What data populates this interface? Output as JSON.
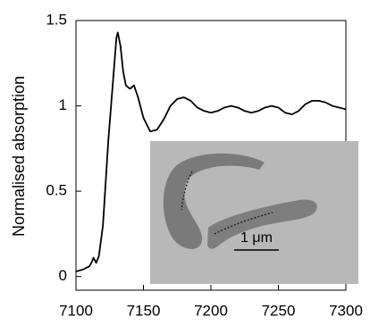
{
  "chart_data": {
    "type": "line",
    "ylabel": "Normalised absorption",
    "annotation": "1 μm",
    "color": "#000000",
    "x": [
      7100,
      7105,
      7110,
      7112,
      7113,
      7115,
      7117,
      7120,
      7122,
      7124,
      7126,
      7128,
      7130,
      7131,
      7133,
      7135,
      7137,
      7140,
      7143,
      7146,
      7150,
      7155,
      7160,
      7165,
      7170,
      7175,
      7180,
      7185,
      7190,
      7195,
      7200,
      7205,
      7210,
      7215,
      7220,
      7225,
      7230,
      7235,
      7240,
      7245,
      7250,
      7255,
      7260,
      7265,
      7270,
      7275,
      7280,
      7285,
      7290,
      7295,
      7300
    ],
    "values": [
      0.03,
      0.04,
      0.06,
      0.09,
      0.11,
      0.08,
      0.12,
      0.3,
      0.55,
      0.8,
      1.0,
      1.2,
      1.4,
      1.43,
      1.35,
      1.2,
      1.12,
      1.1,
      1.12,
      1.05,
      0.93,
      0.85,
      0.86,
      0.92,
      1.0,
      1.04,
      1.05,
      1.03,
      0.99,
      0.97,
      0.96,
      0.97,
      0.99,
      1.0,
      0.99,
      0.97,
      0.96,
      0.97,
      0.99,
      1.0,
      0.99,
      0.96,
      0.95,
      0.97,
      1.01,
      1.03,
      1.03,
      1.02,
      1.0,
      0.99,
      0.98
    ],
    "xlim": [
      7100,
      7300
    ],
    "xticks": [
      7100,
      7150,
      7200,
      7250,
      7300
    ],
    "ylim": [
      -0.08,
      1.5
    ],
    "yticks": [
      0,
      0.5,
      1,
      1.5
    ]
  }
}
